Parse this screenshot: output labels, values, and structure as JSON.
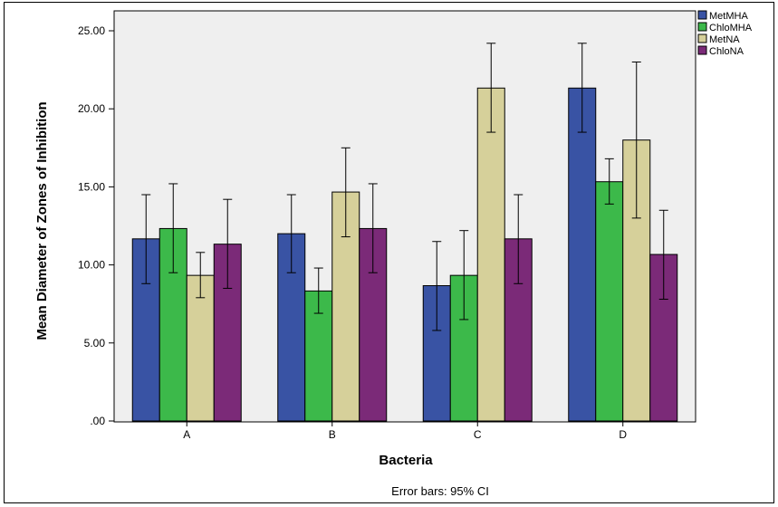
{
  "chart_data": {
    "type": "bar",
    "categories": [
      "A",
      "B",
      "C",
      "D"
    ],
    "series": [
      {
        "name": "MetMHA",
        "color": "#3953a4",
        "values": [
          11.67,
          12.0,
          8.67,
          21.33
        ],
        "ci_low": [
          8.8,
          9.5,
          5.8,
          18.5
        ],
        "ci_high": [
          14.5,
          14.5,
          11.5,
          24.2
        ]
      },
      {
        "name": "ChloMHA",
        "color": "#3cb94a",
        "values": [
          12.33,
          8.33,
          9.33,
          15.33
        ],
        "ci_low": [
          9.5,
          6.9,
          6.5,
          13.9
        ],
        "ci_high": [
          15.2,
          9.8,
          12.2,
          16.8
        ]
      },
      {
        "name": "MetNA",
        "color": "#d6d09a",
        "values": [
          9.33,
          14.67,
          21.33,
          18.0
        ],
        "ci_low": [
          7.9,
          11.8,
          18.5,
          13.0
        ],
        "ci_high": [
          10.8,
          17.5,
          24.2,
          23.0
        ]
      },
      {
        "name": "ChloNA",
        "color": "#7b2a78",
        "values": [
          11.33,
          12.33,
          11.67,
          10.67
        ],
        "ci_low": [
          8.5,
          9.5,
          8.8,
          7.8
        ],
        "ci_high": [
          14.2,
          15.2,
          14.5,
          13.5
        ]
      }
    ],
    "xlabel": "Bacteria",
    "ylabel": "Mean Diameter of Zones of Inhibition",
    "ylim": [
      0,
      25
    ],
    "yticks": [
      0,
      5,
      10,
      15,
      20,
      25
    ],
    "ytick_labels": [
      ".00",
      "5.00",
      "10.00",
      "15.00",
      "20.00",
      "25.00"
    ],
    "footnote": "Error bars: 95% CI",
    "legend_position": "top-right",
    "grid": false,
    "plot_background": "#efefef"
  }
}
